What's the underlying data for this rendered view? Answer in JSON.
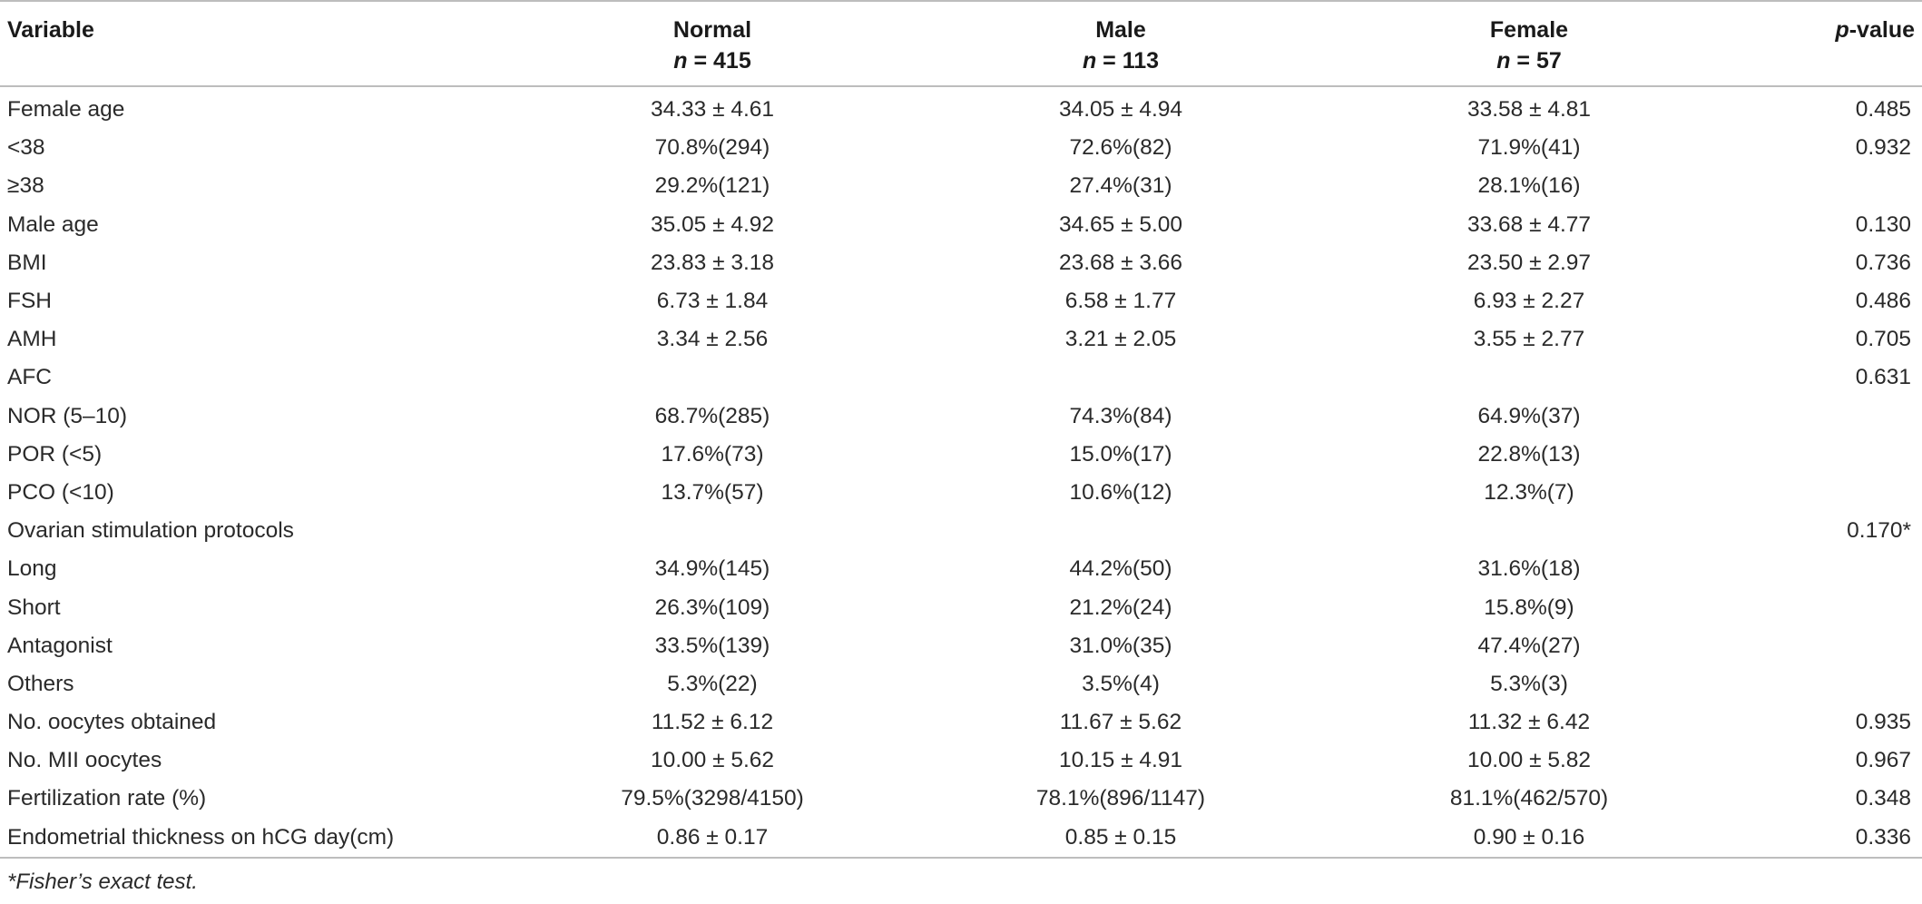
{
  "header": {
    "variable": "Variable",
    "normal": "Normal",
    "normal_n_label": "n",
    "normal_n_value": " = 415",
    "male": "Male",
    "male_n_label": "n",
    "male_n_value": " = 113",
    "female": "Female",
    "female_n_label": "n",
    "female_n_value": " = 57",
    "p_italic": "p",
    "p_rest": "-value"
  },
  "rows": [
    [
      "Female age",
      "34.33 ± 4.61",
      "34.05 ± 4.94",
      "33.58 ± 4.81",
      "0.485"
    ],
    [
      "<38",
      "70.8%(294)",
      "72.6%(82)",
      "71.9%(41)",
      "0.932"
    ],
    [
      "≥38",
      "29.2%(121)",
      "27.4%(31)",
      "28.1%(16)",
      ""
    ],
    [
      "Male age",
      "35.05 ± 4.92",
      "34.65 ± 5.00",
      "33.68 ± 4.77",
      "0.130"
    ],
    [
      "BMI",
      "23.83 ± 3.18",
      "23.68 ± 3.66",
      "23.50 ± 2.97",
      "0.736"
    ],
    [
      "FSH",
      "6.73 ± 1.84",
      "6.58 ± 1.77",
      "6.93 ± 2.27",
      "0.486"
    ],
    [
      "AMH",
      "3.34 ± 2.56",
      "3.21 ± 2.05",
      "3.55 ± 2.77",
      "0.705"
    ],
    [
      "AFC",
      "",
      "",
      "",
      "0.631"
    ],
    [
      "NOR (5–10)",
      "68.7%(285)",
      "74.3%(84)",
      "64.9%(37)",
      ""
    ],
    [
      "POR (<5)",
      "17.6%(73)",
      "15.0%(17)",
      "22.8%(13)",
      ""
    ],
    [
      "PCO (<10)",
      "13.7%(57)",
      "10.6%(12)",
      "12.3%(7)",
      ""
    ],
    [
      "Ovarian stimulation protocols",
      "",
      "",
      "",
      "0.170*"
    ],
    [
      "Long",
      "34.9%(145)",
      "44.2%(50)",
      "31.6%(18)",
      ""
    ],
    [
      "Short",
      "26.3%(109)",
      "21.2%(24)",
      "15.8%(9)",
      ""
    ],
    [
      "Antagonist",
      "33.5%(139)",
      "31.0%(35)",
      "47.4%(27)",
      ""
    ],
    [
      "Others",
      "5.3%(22)",
      "3.5%(4)",
      "5.3%(3)",
      ""
    ],
    [
      "No. oocytes obtained",
      "11.52 ± 6.12",
      "11.67 ± 5.62",
      "11.32 ± 6.42",
      "0.935"
    ],
    [
      "No. MII oocytes",
      "10.00 ± 5.62",
      "10.15 ± 4.91",
      "10.00 ± 5.82",
      "0.967"
    ],
    [
      "Fertilization rate (%)",
      "79.5%(3298/4150)",
      "78.1%(896/1147)",
      "81.1%(462/570)",
      "0.348"
    ],
    [
      "Endometrial thickness on hCG day(cm)",
      "0.86 ± 0.17",
      "0.85 ± 0.15",
      "0.90 ± 0.16",
      "0.336"
    ]
  ],
  "footnote": "*Fisher’s exact test."
}
